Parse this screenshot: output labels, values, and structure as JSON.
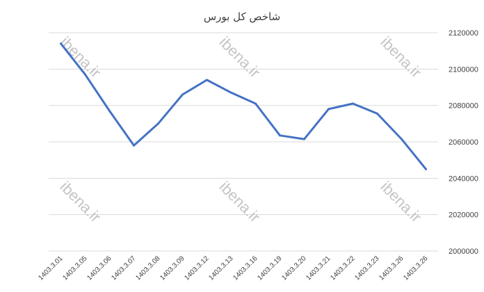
{
  "watermark": "ibena.ir",
  "colors": {
    "series": "#4472c4",
    "grid": "#d9d9d9",
    "text": "#404040",
    "watermark": "#c4c4c4"
  },
  "chart_data": {
    "type": "line",
    "title": "شاخص کل بورس",
    "xlabel": "",
    "ylabel": "",
    "ylim": [
      2000000,
      2120000
    ],
    "yticks": [
      2000000,
      2020000,
      2040000,
      2060000,
      2080000,
      2100000,
      2120000
    ],
    "ytick_labels": [
      "2000000",
      "2020000",
      "2040000",
      "2060000",
      "2080000",
      "2100000",
      "2120000"
    ],
    "y_axis_position": "right",
    "grid": true,
    "legend": "none",
    "categories": [
      "1403.3.01",
      "1403.3.05",
      "1403.3.06",
      "1403.3.07",
      "1403.3.08",
      "1403.3.09",
      "1403.3.12",
      "1403.3.13",
      "1403.3.16",
      "1403.3.19",
      "1403.3.20",
      "1403.3.21",
      "1403.3.22",
      "1403.3.23",
      "1403.3.26",
      "1403.3.26"
    ],
    "series": [
      {
        "values": [
          2114000,
          2097000,
          2077000,
          2058000,
          2070000,
          2086000,
          2094000,
          2087000,
          2081000,
          2063500,
          2061500,
          2078000,
          2081000,
          2075500,
          2061500,
          2045000
        ]
      }
    ]
  }
}
